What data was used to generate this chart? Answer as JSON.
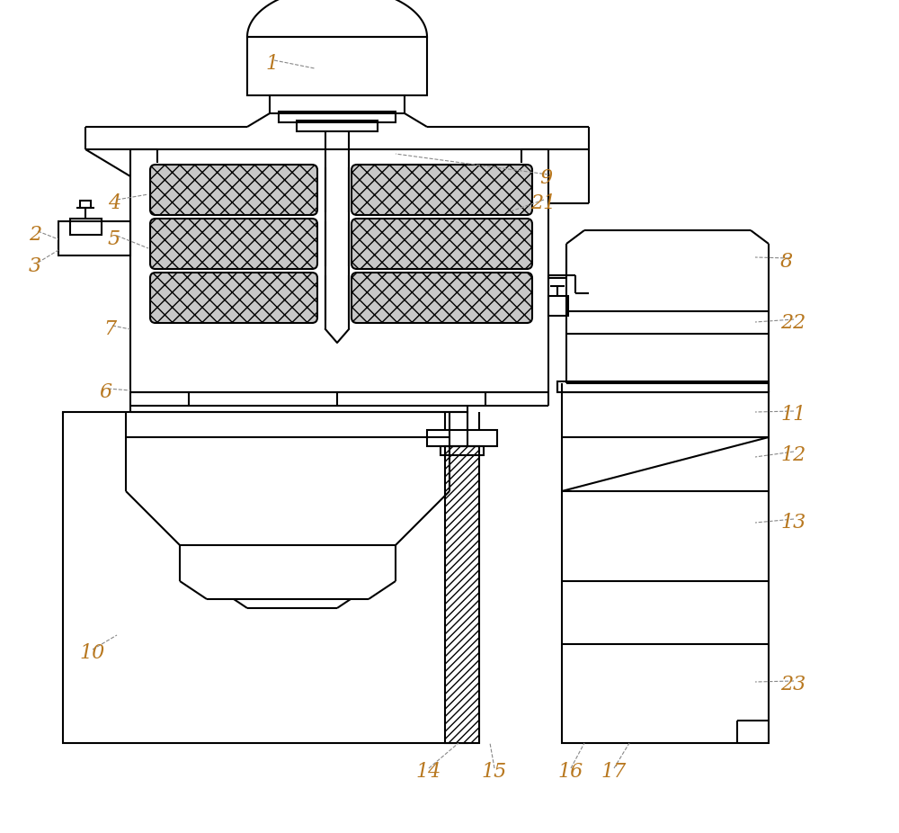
{
  "bg_color": "#ffffff",
  "line_color": "#000000",
  "label_color": "#b87820",
  "label_fontsize": 16,
  "line_width": 1.5,
  "thin_lw": 0.8
}
